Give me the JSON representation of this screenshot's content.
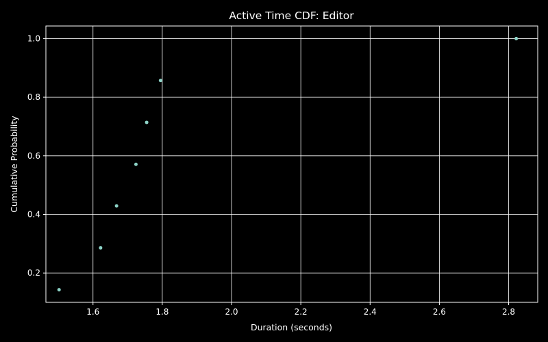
{
  "chart_data": {
    "type": "scatter",
    "title": "Active Time CDF: Editor",
    "xlabel": "Duration (seconds)",
    "ylabel": "Cumulative Probability",
    "xlim": [
      1.464,
      2.884
    ],
    "ylim": [
      0.1,
      1.043
    ],
    "x_ticks": [
      1.6,
      1.8,
      2.0,
      2.2,
      2.4,
      2.6,
      2.8
    ],
    "x_tick_labels": [
      "1.6",
      "1.8",
      "2.0",
      "2.2",
      "2.4",
      "2.6",
      "2.8"
    ],
    "y_ticks": [
      0.2,
      0.4,
      0.6,
      0.8,
      1.0
    ],
    "y_tick_labels": [
      "0.2",
      "0.4",
      "0.6",
      "0.8",
      "1.0"
    ],
    "grid": true,
    "background": "#000000",
    "grid_color": "#ffffff",
    "marker_color": "#8dd3c7",
    "series": [
      {
        "x": [
          1.502,
          1.622,
          1.668,
          1.724,
          1.755,
          1.795,
          2.822
        ],
        "y": [
          0.143,
          0.286,
          0.429,
          0.571,
          0.714,
          0.857,
          1.0
        ]
      }
    ]
  }
}
